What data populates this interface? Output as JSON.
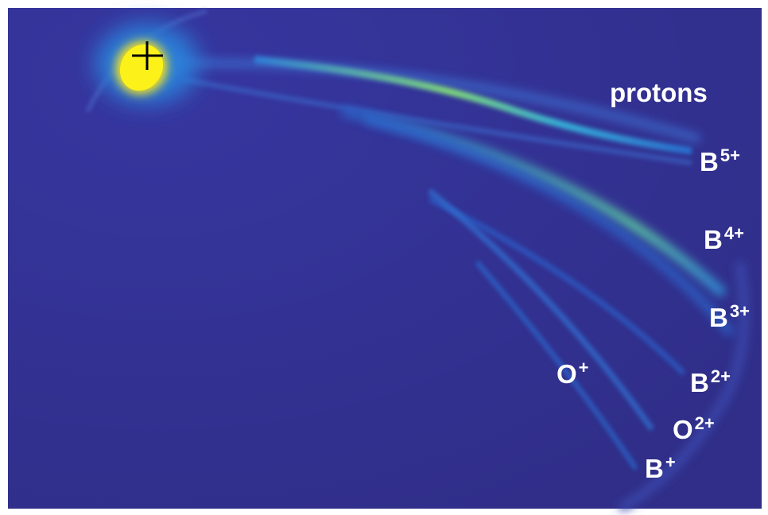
{
  "image": {
    "labels": [
      {
        "text": "protons"
      },
      {
        "text": "B",
        "sup": "5+"
      },
      {
        "text": "B",
        "sup": "4+"
      },
      {
        "text": "B",
        "sup": "3+"
      },
      {
        "text": "O",
        "sup": "+"
      },
      {
        "text": "B",
        "sup": "2+"
      },
      {
        "text": "O",
        "sup": "2+"
      },
      {
        "text": "B",
        "sup": "+"
      }
    ]
  }
}
